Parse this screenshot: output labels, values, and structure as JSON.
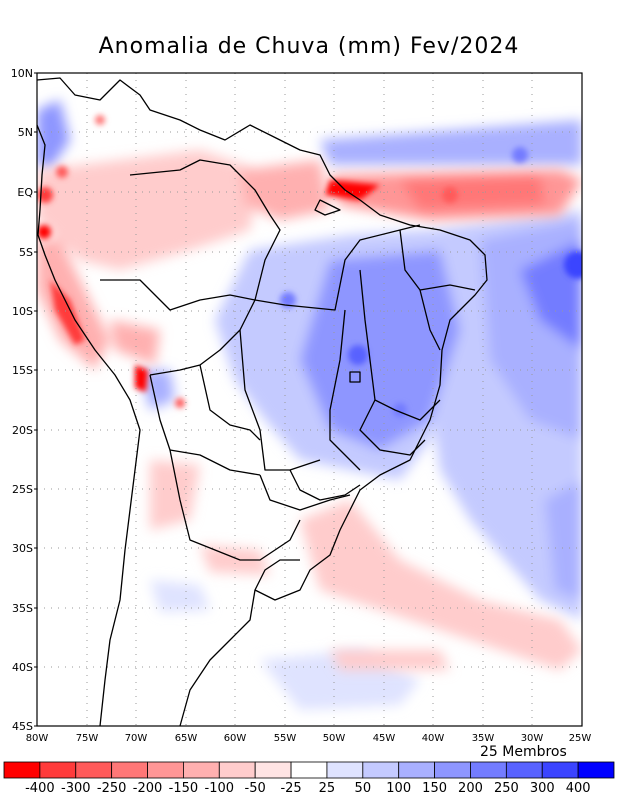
{
  "title": "Anomalia de Chuva (mm) Fev/2024",
  "members_label": "25 Membros",
  "lat_labels": [
    "10N",
    "5N",
    "EQ",
    "5S",
    "10S",
    "15S",
    "20S",
    "25S",
    "30S",
    "35S",
    "40S",
    "45S"
  ],
  "lon_labels": [
    "80W",
    "75W",
    "70W",
    "65W",
    "60W",
    "55W",
    "50W",
    "45W",
    "40W",
    "35W",
    "30W",
    "25W"
  ],
  "colorbar": {
    "colors": [
      "#ff0000",
      "#ff3b3b",
      "#ff5a5a",
      "#ff7777",
      "#ff9696",
      "#ffb0b0",
      "#ffcccc",
      "#ffe4e4",
      "#ffffff",
      "#dfe3ff",
      "#c4caff",
      "#a9b0ff",
      "#8e96ff",
      "#737cff",
      "#5862ff",
      "#3b44ff",
      "#0000ff"
    ],
    "labels": [
      "-400",
      "-300",
      "-250",
      "-200",
      "-150",
      "-100",
      "-50",
      "-25",
      "25",
      "50",
      "100",
      "150",
      "200",
      "250",
      "300",
      "400"
    ]
  },
  "icons": {
    "map": "south-america-precipitation-anomaly-map"
  }
}
